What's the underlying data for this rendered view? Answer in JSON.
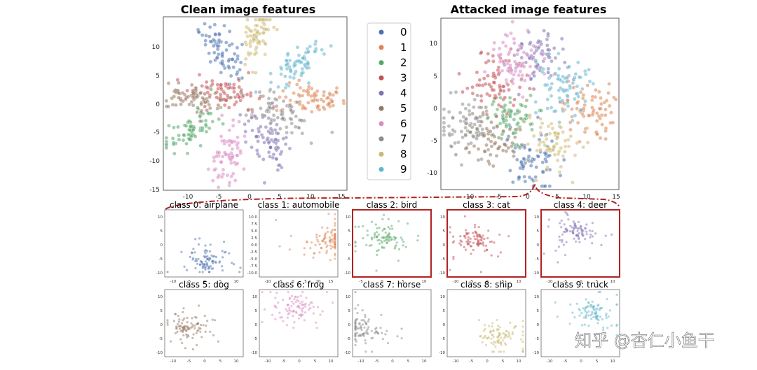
{
  "palette": [
    "#4c72b0",
    "#dd8452",
    "#55a868",
    "#c44e52",
    "#8172b3",
    "#937860",
    "#da8bc3",
    "#8c8c8c",
    "#ccb974",
    "#64b5cd"
  ],
  "highlight_color": "#b22222",
  "legend": {
    "labels": [
      "0",
      "1",
      "2",
      "3",
      "4",
      "5",
      "6",
      "7",
      "8",
      "9"
    ],
    "placement": "between-top-panels"
  },
  "watermark": "知乎 @杏仁小鱼干",
  "chart_data": [
    {
      "type": "scatter",
      "title": "Clean image features",
      "xlim": [
        -14,
        16
      ],
      "ylim": [
        -15.5,
        14
      ],
      "xticks": [
        "-10",
        "-5",
        "0",
        "5",
        "10",
        "15"
      ],
      "yticks": [
        "10",
        "5",
        "0",
        "-5",
        "-10",
        "-15"
      ],
      "series": [
        {
          "name": "0",
          "cx": -4.5,
          "cy": 8.5
        },
        {
          "name": "1",
          "cx": 10,
          "cy": 0
        },
        {
          "name": "2",
          "cx": -9.5,
          "cy": -5.5
        },
        {
          "name": "3",
          "cx": -4,
          "cy": 1
        },
        {
          "name": "4",
          "cx": 3,
          "cy": -7
        },
        {
          "name": "5",
          "cx": -9,
          "cy": 0.5
        },
        {
          "name": "6",
          "cx": -3.5,
          "cy": -10
        },
        {
          "name": "7",
          "cx": 5,
          "cy": -2.5
        },
        {
          "name": "8",
          "cx": 1.5,
          "cy": 10.5
        },
        {
          "name": "9",
          "cx": 8,
          "cy": 6
        }
      ]
    },
    {
      "type": "scatter",
      "title": "Attacked image features",
      "xlim": [
        -13,
        16
      ],
      "ylim": [
        -12.5,
        12.5
      ],
      "xticks": [
        "-10",
        "-5",
        "0",
        "5",
        "10",
        "15"
      ],
      "yticks": [
        "10",
        "5",
        "0",
        "-5",
        "-10"
      ],
      "series": [
        {
          "name": "0",
          "cx": 2,
          "cy": -8
        },
        {
          "name": "1",
          "cx": 11,
          "cy": -1
        },
        {
          "name": "2",
          "cx": -2,
          "cy": -2
        },
        {
          "name": "3",
          "cx": -4,
          "cy": 3
        },
        {
          "name": "4",
          "cx": 3,
          "cy": 7
        },
        {
          "name": "5",
          "cx": -5,
          "cy": -5
        },
        {
          "name": "6",
          "cx": -1,
          "cy": 6
        },
        {
          "name": "7",
          "cx": -9,
          "cy": -3
        },
        {
          "name": "8",
          "cx": 5,
          "cy": -6
        },
        {
          "name": "9",
          "cx": 7,
          "cy": 2
        }
      ]
    },
    {
      "type": "scatter",
      "title": "class 0: airplane",
      "class": 0,
      "highlighted": false,
      "xticks": [
        "-10",
        "-5",
        "0",
        "5",
        "10"
      ],
      "yticks": [
        "10",
        "5",
        "0",
        "-5",
        "-10"
      ],
      "cx": 2,
      "cy": -7
    },
    {
      "type": "scatter",
      "title": "class 1: automobile",
      "class": 1,
      "highlighted": false,
      "xticks": [
        "-10",
        "-5",
        "0",
        "5",
        "10",
        "15"
      ],
      "yticks": [
        "10.0",
        "7.5",
        "5.0",
        "2.5",
        "0.0",
        "-2.5",
        "-5.0",
        "-7.5",
        "-10.0"
      ],
      "cx": 11,
      "cy": 0
    },
    {
      "type": "scatter",
      "title": "class 2: bird",
      "class": 2,
      "highlighted": true,
      "xticks": [
        "-5",
        "0",
        "5",
        "10"
      ],
      "yticks": [
        "10",
        "5",
        "0",
        "-5",
        "-10"
      ],
      "cx": -2,
      "cy": 2
    },
    {
      "type": "scatter",
      "title": "class 3: cat",
      "class": 3,
      "highlighted": true,
      "xticks": [
        "-10",
        "-5",
        "0",
        "5",
        "10"
      ],
      "yticks": [
        "10",
        "5",
        "0",
        "-5",
        "-10"
      ],
      "cx": -3,
      "cy": 1
    },
    {
      "type": "scatter",
      "title": "class 4: deer",
      "class": 4,
      "highlighted": true,
      "xticks": [
        "-10",
        "-5",
        "0",
        "5",
        "10"
      ],
      "yticks": [
        "10",
        "5",
        "0",
        "-5",
        "-10"
      ],
      "cx": 0,
      "cy": 4
    },
    {
      "type": "scatter",
      "title": "class 5: dog",
      "class": 5,
      "highlighted": false,
      "xticks": [
        "-10",
        "-5",
        "0",
        "5",
        "10"
      ],
      "yticks": [
        "10",
        "5",
        "0",
        "-5",
        "-10"
      ],
      "cx": -5,
      "cy": -2
    },
    {
      "type": "scatter",
      "title": "class 6: frog",
      "class": 6,
      "highlighted": false,
      "xticks": [
        "-10",
        "-5",
        "0",
        "5",
        "10"
      ],
      "yticks": [
        "10",
        "5",
        "0",
        "-5",
        "-10"
      ],
      "cx": 0,
      "cy": 6
    },
    {
      "type": "scatter",
      "title": "class 7: horse",
      "class": 7,
      "highlighted": false,
      "xticks": [
        "-10",
        "-5",
        "0",
        "5",
        "10"
      ],
      "yticks": [
        "10",
        "5",
        "0",
        "-5",
        "-10"
      ],
      "cx": -10,
      "cy": -3
    },
    {
      "type": "scatter",
      "title": "class 8: ship",
      "class": 8,
      "highlighted": false,
      "xticks": [
        "-10",
        "-5",
        "0",
        "5",
        "10"
      ],
      "yticks": [
        "10",
        "5",
        "0",
        "-5",
        "-10"
      ],
      "cx": 5,
      "cy": -6
    },
    {
      "type": "scatter",
      "title": "class 9: truck",
      "class": 9,
      "highlighted": false,
      "xticks": [
        "-10",
        "-5",
        "0",
        "5",
        "10"
      ],
      "yticks": [
        "10",
        "5",
        "0",
        "-5",
        "-10"
      ],
      "cx": 5,
      "cy": 4
    }
  ]
}
